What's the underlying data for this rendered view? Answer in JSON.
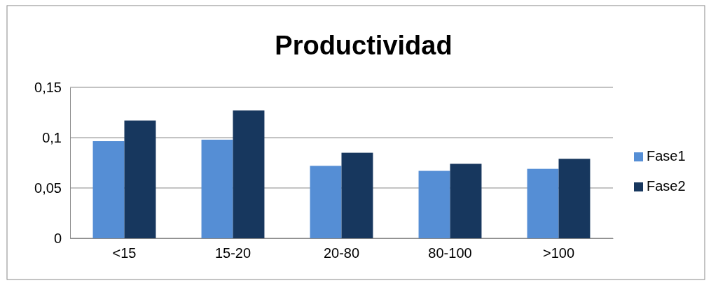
{
  "chart_data": {
    "type": "bar",
    "title": "Productividad",
    "categories": [
      "<15",
      "15-20",
      "20-80",
      "80-100",
      ">100"
    ],
    "series": [
      {
        "name": "Fase1",
        "color": "#558ed5",
        "values": [
          0.0965,
          0.098,
          0.072,
          0.067,
          0.069
        ]
      },
      {
        "name": "Fase2",
        "color": "#17375e",
        "values": [
          0.117,
          0.127,
          0.085,
          0.074,
          0.079
        ]
      }
    ],
    "ylim": [
      0,
      0.15
    ],
    "yticks": [
      {
        "value": 0,
        "label": "0"
      },
      {
        "value": 0.05,
        "label": "0,05"
      },
      {
        "value": 0.1,
        "label": "0,1"
      },
      {
        "value": 0.15,
        "label": "0,15"
      }
    ],
    "grid": "y",
    "legend": "right"
  }
}
